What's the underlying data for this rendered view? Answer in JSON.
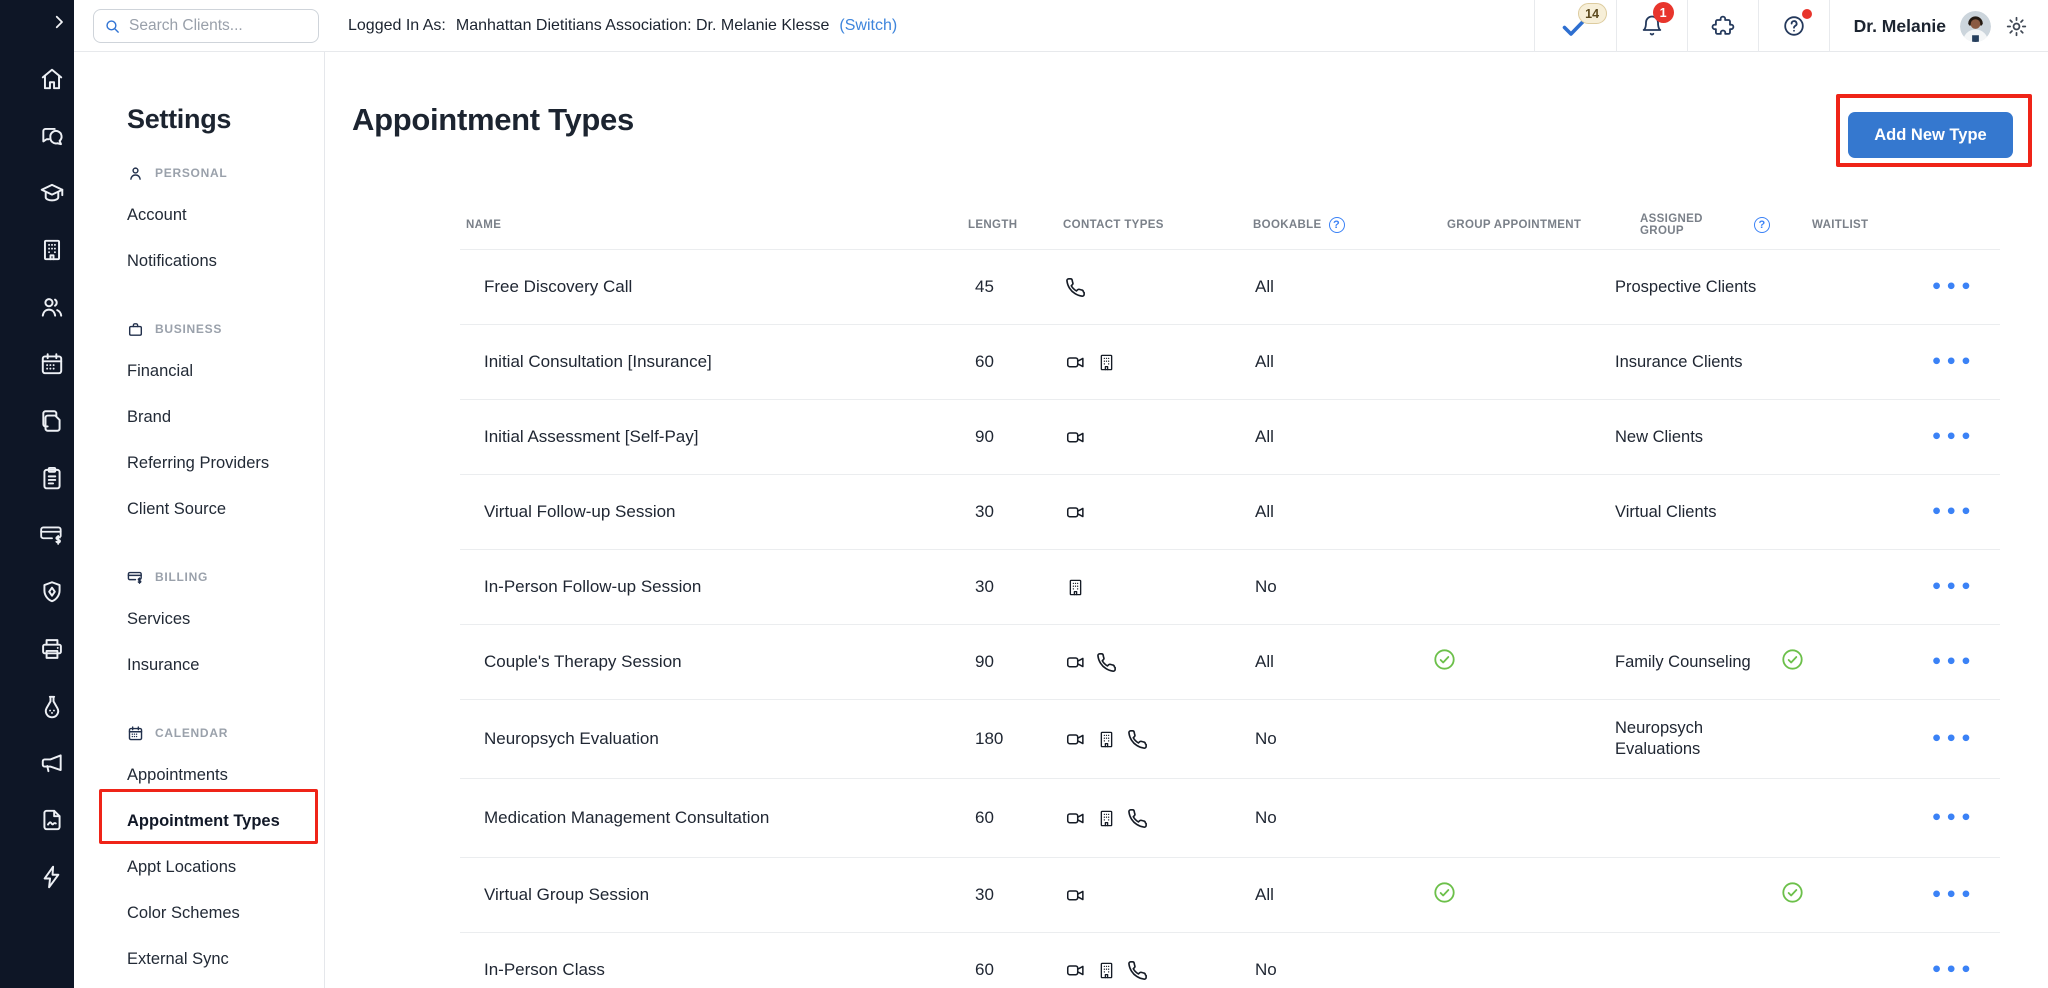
{
  "colors": {
    "sidebar_navy": "#0e1626",
    "accent_blue": "#3578cf",
    "link_blue": "#3e85dc",
    "dots_blue": "#3b82f6",
    "success_green": "#6cc04a",
    "annotation_red": "#ef2418",
    "badge_cream_bg": "#f7efd8",
    "badge_red_bg": "#e8352c"
  },
  "sidebar": {
    "expand_icon": "chevron-right-icon",
    "icons": [
      "home-icon",
      "messages-icon",
      "education-icon",
      "organization-icon",
      "clients-icon",
      "calendar-icon",
      "documents-icon",
      "forms-icon",
      "billing-icon",
      "insurance-icon",
      "fax-icon",
      "labs-icon",
      "marketing-icon",
      "documents-sign-icon",
      "integrations-icon"
    ]
  },
  "topbar": {
    "search_placeholder": "Search Clients...",
    "logged_in_label": "Logged In As:",
    "logged_in_value": "Manhattan Dietitians Association: Dr. Melanie Klesse",
    "switch_label": "(Switch)",
    "tasks_badge": "14",
    "notifications_badge": "1",
    "user_name": "Dr. Melanie"
  },
  "settings_nav": {
    "title": "Settings",
    "sections": [
      {
        "label": "PERSONAL",
        "icon": "person-icon",
        "items": [
          {
            "label": "Account"
          },
          {
            "label": "Notifications"
          }
        ]
      },
      {
        "label": "BUSINESS",
        "icon": "briefcase-icon",
        "items": [
          {
            "label": "Financial"
          },
          {
            "label": "Brand"
          },
          {
            "label": "Referring Providers"
          },
          {
            "label": "Client Source"
          }
        ]
      },
      {
        "label": "BILLING",
        "icon": "billing-card-icon",
        "items": [
          {
            "label": "Services"
          },
          {
            "label": "Insurance"
          }
        ]
      },
      {
        "label": "CALENDAR",
        "icon": "calendar-small-icon",
        "items": [
          {
            "label": "Appointments"
          },
          {
            "label": "Appointment Types",
            "active": true,
            "annotated": true
          },
          {
            "label": "Appt Locations"
          },
          {
            "label": "Color Schemes"
          },
          {
            "label": "External Sync"
          }
        ]
      }
    ]
  },
  "main": {
    "title": "Appointment Types",
    "add_button_label": "Add New Type",
    "table": {
      "columns": [
        {
          "label": "NAME"
        },
        {
          "label": "LENGTH"
        },
        {
          "label": "CONTACT TYPES"
        },
        {
          "label": "BOOKABLE",
          "info": true
        },
        {
          "label": "GROUP APPOINTMENT"
        },
        {
          "label": "ASSIGNED GROUP",
          "info": true
        },
        {
          "label": "WAITLIST"
        }
      ],
      "rows": [
        {
          "name": "Free Discovery Call",
          "length": "45",
          "contact_types": [
            "phone"
          ],
          "bookable": "All",
          "group_appointment": false,
          "assigned_group": "Prospective Clients",
          "waitlist": false
        },
        {
          "name": "Initial Consultation [Insurance]",
          "length": "60",
          "contact_types": [
            "video",
            "building"
          ],
          "bookable": "All",
          "group_appointment": false,
          "assigned_group": "Insurance Clients",
          "waitlist": false
        },
        {
          "name": "Initial Assessment [Self-Pay]",
          "length": "90",
          "contact_types": [
            "video"
          ],
          "bookable": "All",
          "group_appointment": false,
          "assigned_group": "New Clients",
          "waitlist": false
        },
        {
          "name": "Virtual Follow-up Session",
          "length": "30",
          "contact_types": [
            "video"
          ],
          "bookable": "All",
          "group_appointment": false,
          "assigned_group": "Virtual Clients",
          "waitlist": false
        },
        {
          "name": "In-Person Follow-up Session",
          "length": "30",
          "contact_types": [
            "building"
          ],
          "bookable": "No",
          "group_appointment": false,
          "assigned_group": "",
          "waitlist": false
        },
        {
          "name": "Couple's Therapy Session",
          "length": "90",
          "contact_types": [
            "video",
            "phone"
          ],
          "bookable": "All",
          "group_appointment": true,
          "assigned_group": "Family Counseling",
          "waitlist": true
        },
        {
          "name": "Neuropsych Evaluation",
          "length": "180",
          "contact_types": [
            "video",
            "building",
            "phone"
          ],
          "bookable": "No",
          "group_appointment": false,
          "assigned_group": "Neuropsych Evaluations",
          "waitlist": false
        },
        {
          "name": "Medication Management Consultation",
          "length": "60",
          "contact_types": [
            "video",
            "building",
            "phone"
          ],
          "bookable": "No",
          "group_appointment": false,
          "assigned_group": "",
          "waitlist": false
        },
        {
          "name": "Virtual Group Session",
          "length": "30",
          "contact_types": [
            "video"
          ],
          "bookable": "All",
          "group_appointment": true,
          "assigned_group": "",
          "waitlist": true
        },
        {
          "name": "In-Person Class",
          "length": "60",
          "contact_types": [
            "video",
            "building",
            "phone"
          ],
          "bookable": "No",
          "group_appointment": false,
          "assigned_group": "",
          "waitlist": false
        }
      ]
    }
  },
  "annotations": {
    "highlighted_nav_item": "Appointment Types",
    "highlighted_button": "Add New Type"
  }
}
